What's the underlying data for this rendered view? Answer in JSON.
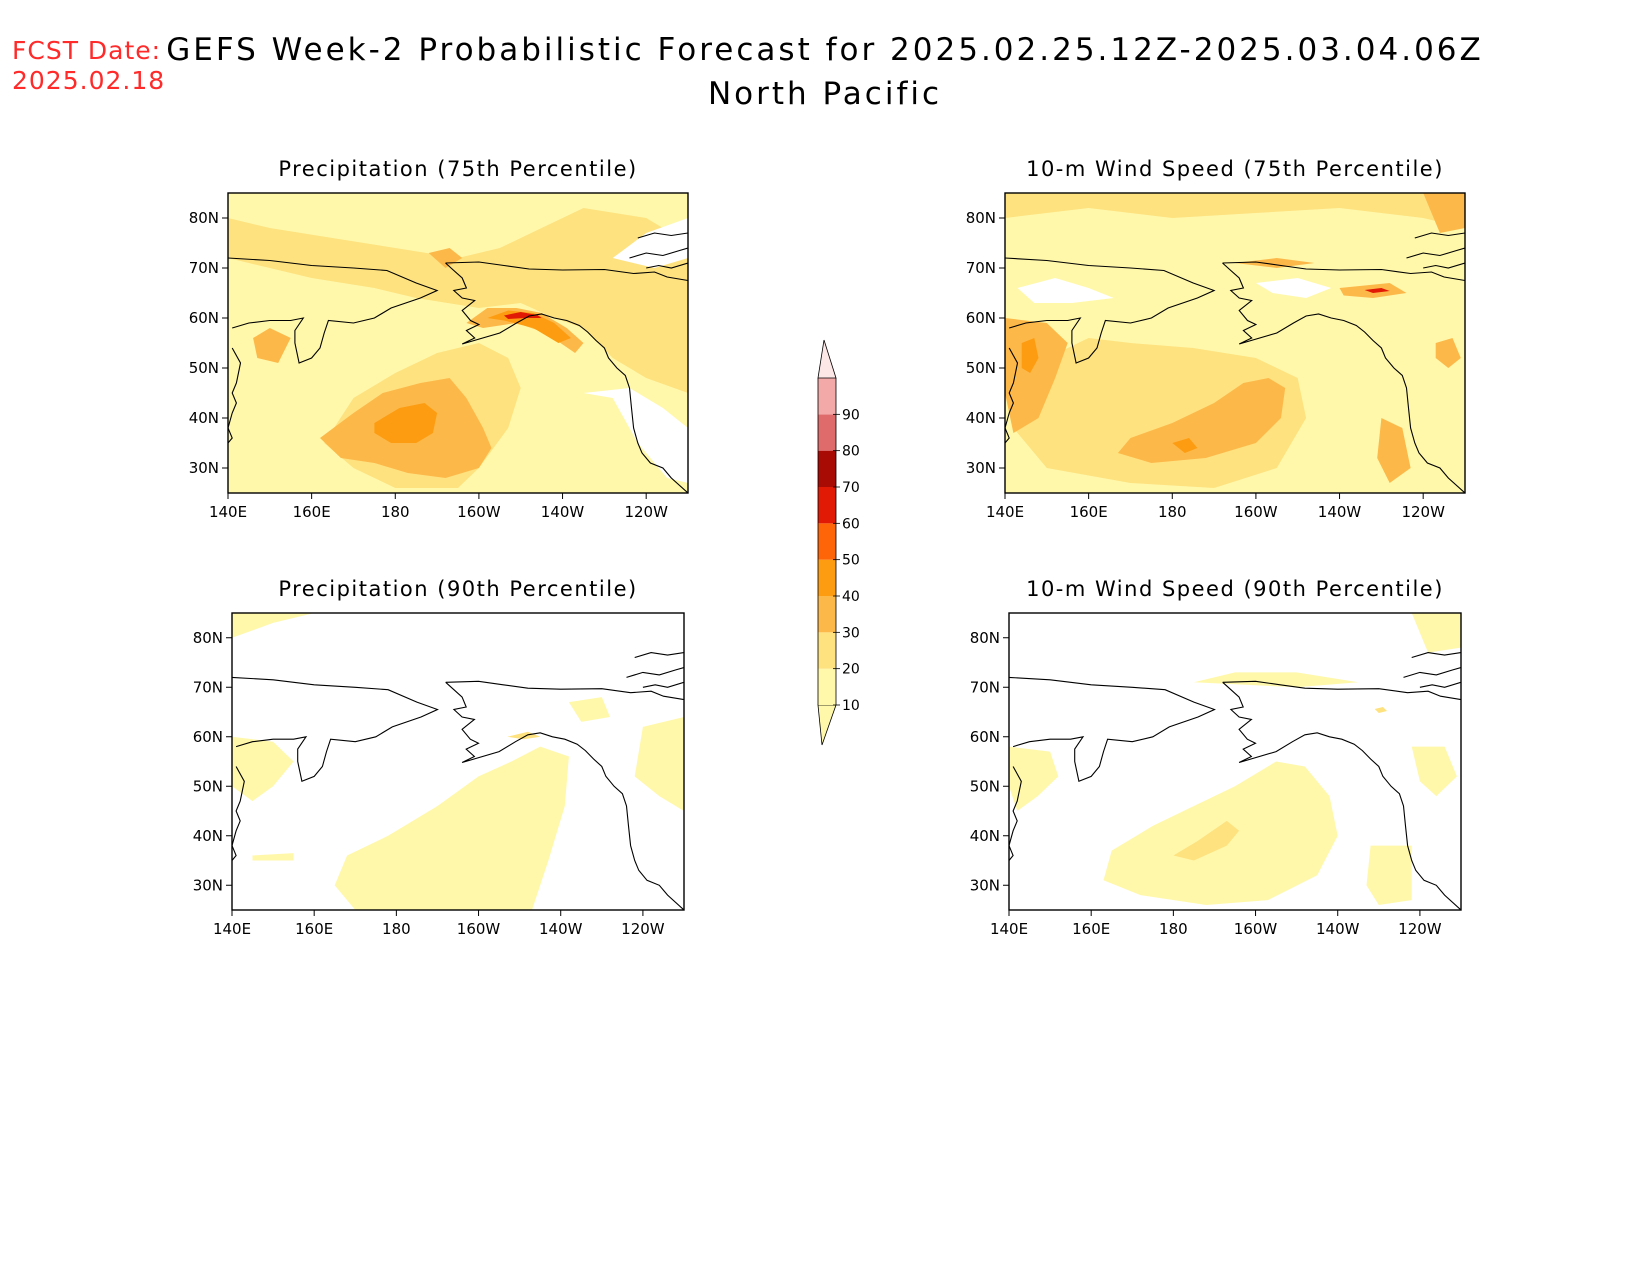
{
  "forecast_date": {
    "label": "FCST Date:",
    "value": "2025.02.18"
  },
  "title": "GEFS Week-2 Probabilistic Forecast for 2025.02.25.12Z-2025.03.04.06Z",
  "subtitle": "North Pacific",
  "lon_ticks": [
    "140E",
    "160E",
    "180",
    "160W",
    "140W",
    "120W"
  ],
  "lat_ticks": [
    "80N",
    "70N",
    "60N",
    "50N",
    "40N",
    "30N"
  ],
  "panels": [
    {
      "id": "precip75",
      "title": "Precipitation (75th Percentile)",
      "variable": "Precipitation",
      "percentile": "75th"
    },
    {
      "id": "wind75",
      "title": "10-m Wind Speed (75th Percentile)",
      "variable": "10-m Wind Speed",
      "percentile": "75th"
    },
    {
      "id": "precip90",
      "title": "Precipitation (90th Percentile)",
      "variable": "Precipitation",
      "percentile": "90th"
    },
    {
      "id": "wind90",
      "title": "10-m Wind Speed (90th Percentile)",
      "variable": "10-m Wind Speed",
      "percentile": "90th"
    }
  ],
  "colorbar": {
    "levels": [
      "10",
      "20",
      "30",
      "40",
      "50",
      "60",
      "70",
      "80",
      "90"
    ],
    "colors": [
      "#fff8ab",
      "#fee27f",
      "#fdb84a",
      "#fd9c10",
      "#fd6508",
      "#e11a05",
      "#a80a04",
      "#e06b6b",
      "#f4a9a9",
      "#fde6e6"
    ]
  },
  "colors": {
    "fcst_text": "#ff2a2a",
    "coast": "#000000"
  }
}
